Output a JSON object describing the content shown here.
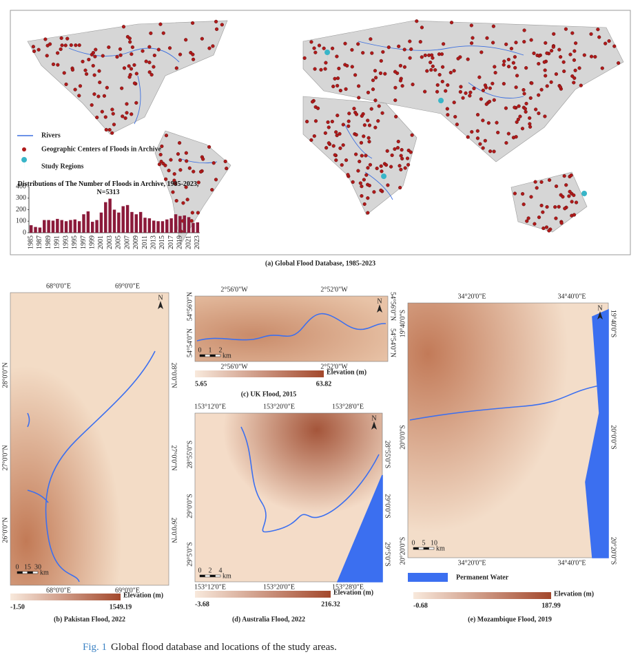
{
  "panel_a": {
    "legend": [
      "Rivers",
      "Geographic Centers of Floods in Archive",
      "Study Regions"
    ],
    "caption": "(a) Global Flood Database, 1985-2023"
  },
  "chart_data": {
    "type": "bar",
    "title": "Distributions of The Number of Floods in Archive, 1985-2023, N=5313",
    "categories": [
      "1985",
      null,
      "1987",
      null,
      "1989",
      null,
      "1991",
      null,
      "1993",
      null,
      "1995",
      null,
      "1997",
      null,
      "1999",
      null,
      "2001",
      null,
      "2003",
      null,
      "2005",
      null,
      "2007",
      null,
      "2009",
      null,
      "2011",
      null,
      "2013",
      null,
      "2015",
      null,
      "2017",
      null,
      "2019",
      null,
      "2021",
      null,
      "2023"
    ],
    "values": [
      65,
      50,
      45,
      110,
      110,
      105,
      120,
      110,
      100,
      110,
      115,
      100,
      160,
      185,
      95,
      110,
      175,
      265,
      295,
      200,
      175,
      230,
      240,
      180,
      160,
      180,
      130,
      125,
      105,
      100,
      100,
      115,
      125,
      160,
      145,
      150,
      135,
      85,
      90
    ],
    "color": "#8b1a3a",
    "ylim": [
      0,
      400
    ],
    "yticks": [
      0,
      100,
      200,
      300,
      400
    ]
  },
  "panels": [
    {
      "top_labels": [
        "68°0'0\"E",
        "69°0'0\"E"
      ],
      "bottom_labels": [
        "68°0'0\"E",
        "69°0'0\"E"
      ],
      "left_labels": [
        "28°0'0\"N",
        "27°0'0\"N",
        "26°0'0\"N"
      ],
      "right_labels": [
        "28°0'0\"N",
        "27°0'0\"N",
        "26°0'0\"N"
      ],
      "scale": [
        "0",
        "15",
        "30",
        "km"
      ],
      "north": "N",
      "elevation_label": "Elevation (m)",
      "elevation_min": "-1.50",
      "elevation_max": "1549.19",
      "caption": "(b) Pakistan Flood, 2022"
    },
    {
      "top_labels": [
        "2°56'0\"W",
        "2°52'0\"W"
      ],
      "bottom_labels": [
        "2°56'0\"W",
        "2°52'0\"W"
      ],
      "left_labels": [
        "54°56'0\"N",
        "54°54'0\"N"
      ],
      "right_labels": [
        "54°56'0\"N",
        "54°54'0\"N"
      ],
      "scale": [
        "0",
        "1",
        "2",
        "km"
      ],
      "north": "N",
      "elevation_label": "Elevation (m)",
      "elevation_min": "5.65",
      "elevation_max": "63.82",
      "caption": "(c) UK Flood, 2015"
    },
    {
      "top_labels": [
        "153°12'0\"E",
        "153°20'0\"E",
        "153°28'0\"E"
      ],
      "bottom_labels": [
        "153°12'0\"E",
        "153°20'0\"E",
        "153°28'0\"E"
      ],
      "left_labels": [
        "28°55'0\"S",
        "29°0'0\"S",
        "29°5'0\"S"
      ],
      "right_labels": [
        "28°55'0\"S",
        "29°0'0\"S",
        "29°5'0\"S"
      ],
      "scale": [
        "0",
        "2",
        "4",
        "km"
      ],
      "north": "N",
      "elevation_label": "Elevation (m)",
      "elevation_min": "-3.68",
      "elevation_max": "216.32",
      "caption": "(d) Australia Flood, 2022"
    },
    {
      "top_labels": [
        "34°20'0\"E",
        "34°40'0\"E"
      ],
      "bottom_labels": [
        "34°20'0\"E",
        "34°40'0\"E"
      ],
      "left_labels": [
        "19°40'0\"S",
        "20°0'0\"S",
        "20°20'0\"S"
      ],
      "right_labels": [
        "19°40'0\"S",
        "20°0'0\"S",
        "20°20'0\"S"
      ],
      "scale": [
        "0",
        "5",
        "10",
        "km"
      ],
      "north": "N",
      "water_legend": "Permanent Water",
      "elevation_label": "Elevation (m)",
      "elevation_min": "-0.68",
      "elevation_max": "187.99",
      "caption": "(e) Mozambique Flood, 2019"
    }
  ],
  "figure_caption": {
    "label": "Fig. 1",
    "text": "Global flood database and locations of the study areas."
  }
}
